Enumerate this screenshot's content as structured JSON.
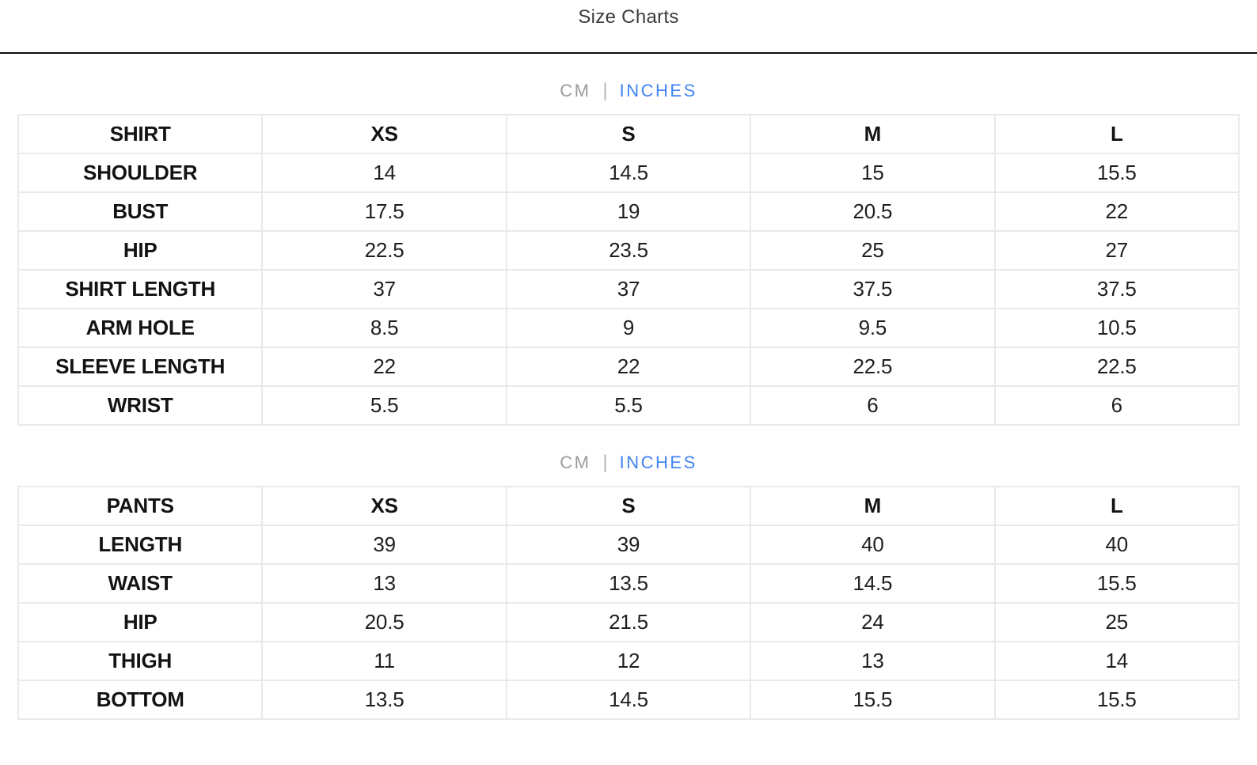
{
  "page_title": "Size Charts",
  "unit_toggle": {
    "cm_label": "CM",
    "divider": "|",
    "inches_label": "INCHES",
    "selected_unit": "INCHES",
    "active_color": "#4285f4",
    "inactive_color": "#9c9c9c"
  },
  "chart_data": [
    {
      "type": "table",
      "title": "SHIRT",
      "unit": "INCHES",
      "header": [
        "SHIRT",
        "XS",
        "S",
        "M",
        "L"
      ],
      "rows": [
        {
          "label": "SHOULDER",
          "values": [
            "14",
            "14.5",
            "15",
            "15.5"
          ]
        },
        {
          "label": "BUST",
          "values": [
            "17.5",
            "19",
            "20.5",
            "22"
          ]
        },
        {
          "label": "HIP",
          "values": [
            "22.5",
            "23.5",
            "25",
            "27"
          ]
        },
        {
          "label": "SHIRT LENGTH",
          "values": [
            "37",
            "37",
            "37.5",
            "37.5"
          ]
        },
        {
          "label": "ARM HOLE",
          "values": [
            "8.5",
            "9",
            "9.5",
            "10.5"
          ]
        },
        {
          "label": "SLEEVE LENGTH",
          "values": [
            "22",
            "22",
            "22.5",
            "22.5"
          ]
        },
        {
          "label": "WRIST",
          "values": [
            "5.5",
            "5.5",
            "6",
            "6"
          ]
        }
      ]
    },
    {
      "type": "table",
      "title": "PANTS",
      "unit": "INCHES",
      "header": [
        "PANTS",
        "XS",
        "S",
        "M",
        "L"
      ],
      "rows": [
        {
          "label": "LENGTH",
          "values": [
            "39",
            "39",
            "40",
            "40"
          ]
        },
        {
          "label": "WAIST",
          "values": [
            "13",
            "13.5",
            "14.5",
            "15.5"
          ]
        },
        {
          "label": "HIP",
          "values": [
            "20.5",
            "21.5",
            "24",
            "25"
          ]
        },
        {
          "label": "THIGH",
          "values": [
            "11",
            "12",
            "13",
            "14"
          ]
        },
        {
          "label": "BOTTOM",
          "values": [
            "13.5",
            "14.5",
            "15.5",
            "15.5"
          ]
        }
      ]
    }
  ]
}
